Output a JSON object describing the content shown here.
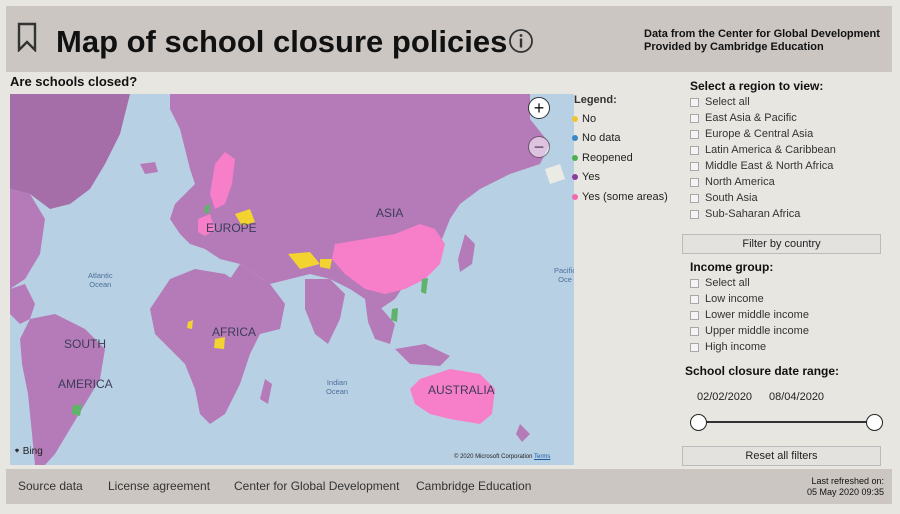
{
  "header": {
    "title": "Map of school closure policies",
    "source_line1": "Data from the Center for Global Development",
    "source_line2": "Provided by Cambridge Education"
  },
  "map": {
    "heading": "Are schools closed?",
    "labels": {
      "asia": "ASIA",
      "europe": "EUROPE",
      "africa": "AFRICA",
      "south_america_1": "SOUTH",
      "south_america_2": "AMERICA",
      "australia": "AUSTRALIA",
      "atlantic_1": "Atlantic",
      "atlantic_2": "Ocean",
      "indian_1": "Indian",
      "indian_2": "Ocean",
      "pacific_1": "Pacific",
      "pacific_2": "Oce"
    },
    "bing": "Bing",
    "copyright": "© 2020 Microsoft Corporation",
    "terms": "Terms",
    "zoom_in": "+",
    "zoom_out": "−"
  },
  "legend": {
    "title": "Legend:",
    "items": [
      {
        "label": "No",
        "color": "#f4c430"
      },
      {
        "label": "No data",
        "color": "#3a86c8"
      },
      {
        "label": "Reopened",
        "color": "#4caf50"
      },
      {
        "label": "Yes",
        "color": "#8e3c9a"
      },
      {
        "label": "Yes (some areas)",
        "color": "#f06ab0"
      }
    ]
  },
  "region": {
    "title": "Select a region to view:",
    "options": [
      "Select all",
      "East Asia & Pacific",
      "Europe & Central Asia",
      "Latin America & Caribbean",
      "Middle East & North Africa",
      "North America",
      "South Asia",
      "Sub-Saharan Africa"
    ]
  },
  "filter_button": "Filter by country",
  "income": {
    "title": "Income group:",
    "options": [
      "Select all",
      "Low income",
      "Lower middle income",
      "Upper middle income",
      "High income"
    ]
  },
  "date_range": {
    "title": "School closure date range:",
    "start": "02/02/2020",
    "end": "08/04/2020"
  },
  "reset_button": "Reset all filters",
  "footer": {
    "links": [
      "Source data",
      "License agreement",
      "Center for Global Development",
      "Cambridge Education"
    ],
    "refresh_label": "Last refreshed on:",
    "refresh_time": "05 May 2020 09:35"
  },
  "colors": {
    "yes": "#b57bb8",
    "some_areas": "#f77ec8",
    "no": "#f2d330",
    "reopened": "#5fb36a",
    "ocean": "#b8d0e4",
    "land_na": "#ebebe6"
  }
}
